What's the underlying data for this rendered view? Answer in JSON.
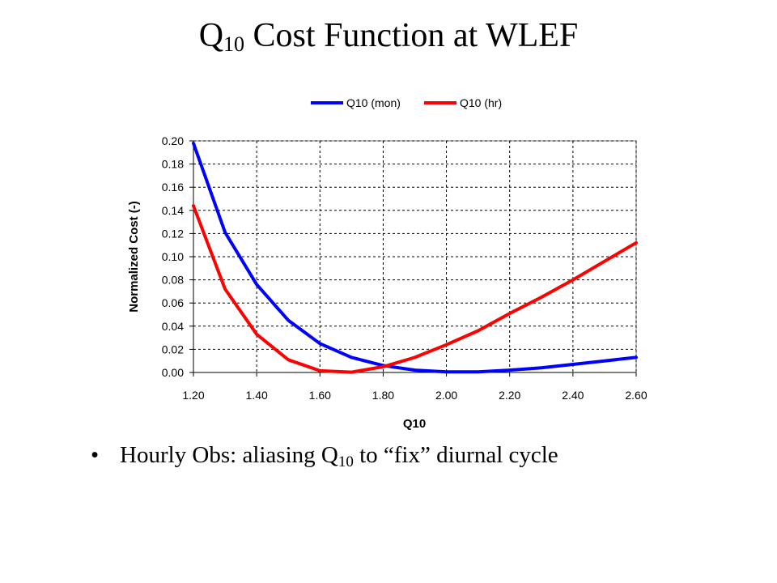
{
  "title": {
    "main": "Q",
    "sub": "10",
    "rest": " Cost Function at WLEF"
  },
  "bullet": {
    "symbol": "•",
    "pre": "Hourly Obs: aliasing Q",
    "sub": "10",
    "post": " to “fix” diurnal cycle"
  },
  "chart_data": {
    "type": "line",
    "xlabel": "Q10",
    "ylabel": "Normalized Cost (-)",
    "xlim": [
      1.2,
      2.6
    ],
    "ylim": [
      0,
      0.2
    ],
    "x_ticks": [
      "1.20",
      "1.40",
      "1.60",
      "1.80",
      "2.00",
      "2.20",
      "2.40",
      "2.60"
    ],
    "y_ticks": [
      "0.00",
      "0.02",
      "0.04",
      "0.06",
      "0.08",
      "0.10",
      "0.12",
      "0.14",
      "0.16",
      "0.18",
      "0.20"
    ],
    "grid": true,
    "legend_position": "top",
    "x": [
      1.2,
      1.3,
      1.4,
      1.5,
      1.6,
      1.7,
      1.8,
      1.9,
      2.0,
      2.1,
      2.2,
      2.3,
      2.4,
      2.5,
      2.6
    ],
    "series": [
      {
        "name": "Q10 (mon)",
        "color": "#0000ff",
        "values": [
          0.198,
          0.121,
          0.076,
          0.045,
          0.025,
          0.013,
          0.006,
          0.002,
          0.0005,
          0.0005,
          0.002,
          0.004,
          0.007,
          0.01,
          0.013
        ]
      },
      {
        "name": "Q10 (hr)",
        "color": "#ff0000",
        "values": [
          0.144,
          0.072,
          0.033,
          0.011,
          0.0015,
          0.0003,
          0.005,
          0.013,
          0.024,
          0.036,
          0.051,
          0.065,
          0.08,
          0.096,
          0.112
        ]
      }
    ]
  }
}
